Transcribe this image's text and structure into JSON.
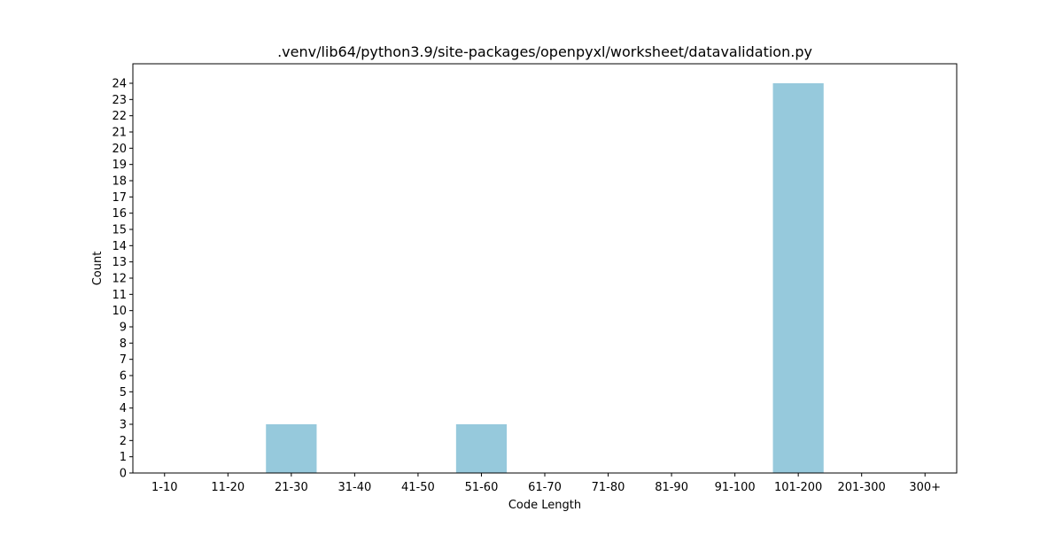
{
  "chart_data": {
    "type": "bar",
    "title": ".venv/lib64/python3.9/site-packages/openpyxl/worksheet/datavalidation.py",
    "xlabel": "Code Length",
    "ylabel": "Count",
    "categories": [
      "1-10",
      "11-20",
      "21-30",
      "31-40",
      "41-50",
      "51-60",
      "61-70",
      "71-80",
      "81-90",
      "91-100",
      "101-200",
      "201-300",
      "300+"
    ],
    "values": [
      0,
      0,
      3,
      0,
      0,
      3,
      0,
      0,
      0,
      0,
      24,
      0,
      0
    ],
    "ylim": [
      0,
      25.2
    ],
    "yticks": [
      0,
      1,
      2,
      3,
      4,
      5,
      6,
      7,
      8,
      9,
      10,
      11,
      12,
      13,
      14,
      15,
      16,
      17,
      18,
      19,
      20,
      21,
      22,
      23,
      24
    ],
    "grid": false,
    "bar_color": "#96c9dc"
  }
}
